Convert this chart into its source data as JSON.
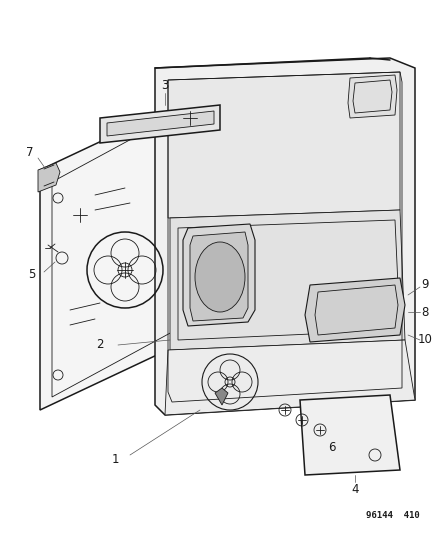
{
  "bg_color": "#ffffff",
  "line_color": "#1a1a1a",
  "label_color": "#1a1a1a",
  "part_number_text": "96144  410",
  "part_number_fontsize": 6.5,
  "label_fontsize": 8.5,
  "fig_width": 4.39,
  "fig_height": 5.33,
  "dpi": 100,
  "lw_main": 1.1,
  "lw_thin": 0.6,
  "lw_med": 0.8
}
